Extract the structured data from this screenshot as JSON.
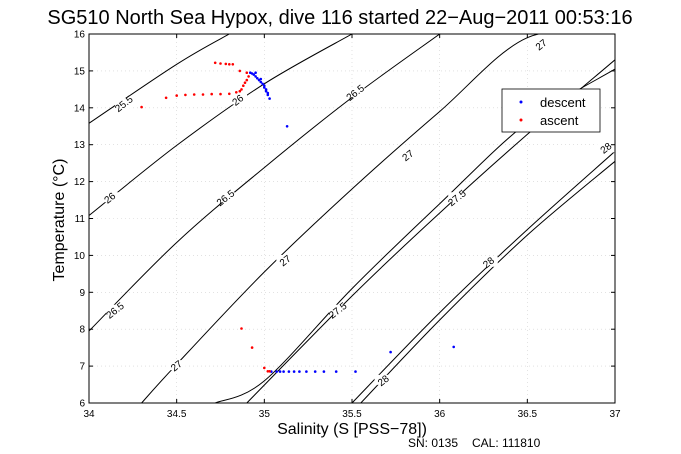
{
  "chart_data": {
    "type": "scatter",
    "title": "SG510 North Sea Hypox, dive 116 started 22−Aug−2011 00:53:16",
    "xlabel": "Salinity (S [PSS−78])",
    "ylabel": "Temperature (°C)",
    "xlim": [
      34,
      37
    ],
    "ylim": [
      6,
      16
    ],
    "xticks": [
      34,
      34.5,
      35,
      35.5,
      36,
      36.5,
      37
    ],
    "xtick_labels": [
      "34",
      "34.5",
      "35",
      "35.5",
      "36",
      "36.5",
      "37"
    ],
    "yticks": [
      6,
      7,
      8,
      9,
      10,
      11,
      12,
      13,
      14,
      15,
      16
    ],
    "ytick_labels": [
      "6",
      "7",
      "8",
      "9",
      "10",
      "11",
      "12",
      "13",
      "14",
      "15",
      "16"
    ],
    "grid": true,
    "legend_position": "top-right",
    "series": [
      {
        "name": "descent",
        "color": "#0000ff",
        "points": [
          [
            34.92,
            14.95
          ],
          [
            34.93,
            14.93
          ],
          [
            34.94,
            14.9
          ],
          [
            34.95,
            14.85
          ],
          [
            34.96,
            14.8
          ],
          [
            34.97,
            14.75
          ],
          [
            34.98,
            14.7
          ],
          [
            34.99,
            14.65
          ],
          [
            35.0,
            14.6
          ],
          [
            35.0,
            14.55
          ],
          [
            35.01,
            14.5
          ],
          [
            35.01,
            14.45
          ],
          [
            35.02,
            14.4
          ],
          [
            35.02,
            14.35
          ],
          [
            35.03,
            14.25
          ],
          [
            34.95,
            14.95
          ],
          [
            34.98,
            14.78
          ],
          [
            35.13,
            13.5
          ],
          [
            35.04,
            6.85
          ],
          [
            35.07,
            6.85
          ],
          [
            35.09,
            6.85
          ],
          [
            35.11,
            6.85
          ],
          [
            35.14,
            6.85
          ],
          [
            35.17,
            6.85
          ],
          [
            35.2,
            6.85
          ],
          [
            35.24,
            6.85
          ],
          [
            35.29,
            6.85
          ],
          [
            35.34,
            6.85
          ],
          [
            35.41,
            6.85
          ],
          [
            35.52,
            6.85
          ],
          [
            35.72,
            7.38
          ],
          [
            36.08,
            7.52
          ]
        ]
      },
      {
        "name": "ascent",
        "color": "#ff0000",
        "points": [
          [
            34.72,
            15.22
          ],
          [
            34.75,
            15.2
          ],
          [
            34.78,
            15.19
          ],
          [
            34.8,
            15.18
          ],
          [
            34.82,
            15.18
          ],
          [
            34.86,
            15.0
          ],
          [
            34.9,
            14.95
          ],
          [
            34.91,
            14.85
          ],
          [
            34.9,
            14.75
          ],
          [
            34.89,
            14.68
          ],
          [
            34.88,
            14.6
          ],
          [
            34.87,
            14.5
          ],
          [
            34.86,
            14.45
          ],
          [
            34.84,
            14.42
          ],
          [
            34.8,
            14.38
          ],
          [
            34.75,
            14.37
          ],
          [
            34.7,
            14.37
          ],
          [
            34.65,
            14.36
          ],
          [
            34.6,
            14.36
          ],
          [
            34.55,
            14.35
          ],
          [
            34.5,
            14.33
          ],
          [
            34.44,
            14.27
          ],
          [
            34.3,
            14.02
          ],
          [
            34.87,
            8.02
          ],
          [
            34.93,
            7.5
          ],
          [
            35.0,
            6.95
          ],
          [
            35.02,
            6.86
          ],
          [
            35.03,
            6.86
          ]
        ]
      }
    ],
    "contour_labels": [
      "25.5",
      "26",
      "26.5",
      "27",
      "27.5",
      "28"
    ],
    "contours": [
      {
        "label": "25.5",
        "points": [
          [
            34.0,
            13.58
          ],
          [
            34.5,
            15.18
          ],
          [
            34.8,
            16.0
          ]
        ]
      },
      {
        "label": "26",
        "points": [
          [
            34.0,
            11.08
          ],
          [
            34.5,
            12.98
          ],
          [
            35.0,
            14.65
          ],
          [
            35.5,
            16.0
          ]
        ]
      },
      {
        "label": "26.5",
        "points": [
          [
            34.0,
            7.95
          ],
          [
            34.5,
            10.35
          ],
          [
            35.0,
            12.38
          ],
          [
            35.5,
            14.28
          ],
          [
            36.0,
            16.0
          ]
        ]
      },
      {
        "label": "26.5",
        "points": [
          [
            34.9,
            6.0
          ],
          [
            35.5,
            8.9
          ],
          [
            36.0,
            11.15
          ],
          [
            36.5,
            13.28
          ],
          [
            37.0,
            15.3
          ]
        ]
      },
      {
        "label": "27",
        "points": [
          [
            34.3,
            6.0
          ],
          [
            34.5,
            7.05
          ],
          [
            35.0,
            9.55
          ],
          [
            35.5,
            11.8
          ],
          [
            36.0,
            13.9
          ],
          [
            36.5,
            15.9
          ],
          [
            37.0,
            16.0
          ]
        ]
      },
      {
        "label": "27",
        "points": [
          [
            35.5,
            6.0
          ],
          [
            36.0,
            8.45
          ],
          [
            36.5,
            10.7
          ],
          [
            37.0,
            12.82
          ]
        ]
      },
      {
        "label": "27.5",
        "points": [
          [
            34.72,
            6.0
          ],
          [
            35.0,
            6.6
          ],
          [
            35.5,
            9.1
          ],
          [
            36.0,
            11.4
          ],
          [
            36.5,
            13.6
          ],
          [
            37.0,
            15.05
          ]
        ]
      },
      {
        "label": "28",
        "points": [
          [
            35.55,
            6.0
          ],
          [
            36.0,
            8.25
          ],
          [
            36.5,
            10.55
          ],
          [
            37.0,
            12.55
          ]
        ]
      }
    ],
    "contour_label_positions": [
      {
        "text": "25.5",
        "x": 34.2,
        "y": 14.1
      },
      {
        "text": "26",
        "x": 34.12,
        "y": 11.55
      },
      {
        "text": "26",
        "x": 34.85,
        "y": 14.2
      },
      {
        "text": "26.5",
        "x": 34.15,
        "y": 8.5
      },
      {
        "text": "26.5",
        "x": 34.78,
        "y": 11.55
      },
      {
        "text": "26.5",
        "x": 35.52,
        "y": 14.4
      },
      {
        "text": "27",
        "x": 34.5,
        "y": 7.0
      },
      {
        "text": "27",
        "x": 35.12,
        "y": 9.85
      },
      {
        "text": "27",
        "x": 35.82,
        "y": 12.7
      },
      {
        "text": "27",
        "x": 36.58,
        "y": 15.7
      },
      {
        "text": "27.5",
        "x": 35.42,
        "y": 8.5
      },
      {
        "text": "27.5",
        "x": 36.1,
        "y": 11.55
      },
      {
        "text": "28",
        "x": 35.68,
        "y": 6.6
      },
      {
        "text": "28",
        "x": 36.28,
        "y": 9.8
      },
      {
        "text": "28",
        "x": 36.95,
        "y": 12.9
      }
    ]
  },
  "footer": {
    "serial": "SN: 0135",
    "calibration": "CAL: 111810"
  }
}
